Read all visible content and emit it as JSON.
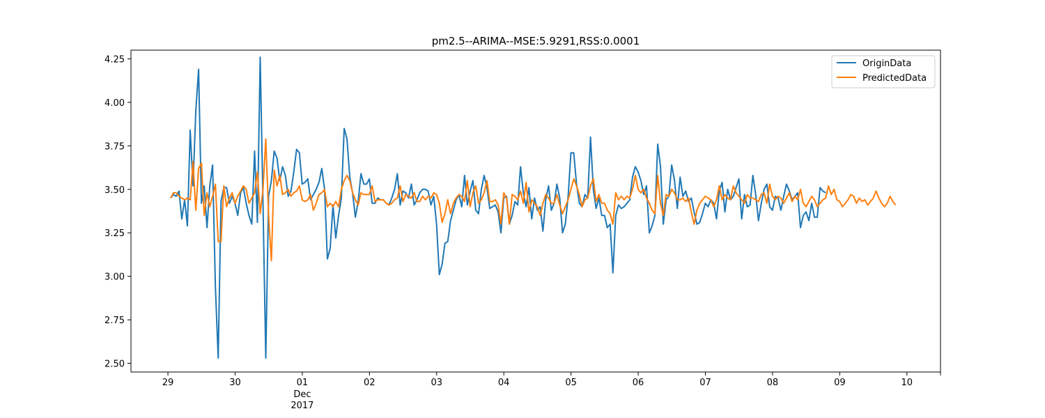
{
  "chart_data": {
    "type": "line",
    "title": "pm2.5--ARIMA--MSE:5.9291,RSS:0.0001",
    "xlabel": "",
    "ylabel": "",
    "x_ticks": [
      "29",
      "30",
      "01",
      "02",
      "03",
      "04",
      "05",
      "06",
      "07",
      "08",
      "09",
      "10"
    ],
    "x_tick_sublabel": [
      "Dec",
      "2017"
    ],
    "y_ticks": [
      "2.50",
      "2.75",
      "3.00",
      "3.25",
      "3.50",
      "3.75",
      "4.00",
      "4.25"
    ],
    "xlim": [
      28.45,
      40.5
    ],
    "ylim": [
      2.45,
      4.3
    ],
    "grid": false,
    "legend_position": "top-right",
    "series": [
      {
        "name": "OriginData",
        "color": "#1f77b4",
        "x_start": 29.04,
        "x_step": 0.04167,
        "values": [
          3.45,
          3.47,
          3.46,
          3.49,
          3.33,
          3.44,
          3.29,
          3.84,
          3.52,
          3.95,
          4.19,
          3.42,
          3.52,
          3.28,
          3.52,
          3.64,
          2.94,
          2.53,
          3.43,
          3.51,
          3.51,
          3.42,
          3.46,
          3.42,
          3.35,
          3.48,
          3.51,
          3.42,
          3.35,
          3.3,
          3.72,
          3.31,
          4.26,
          3.42,
          2.53,
          3.46,
          3.55,
          3.72,
          3.68,
          3.55,
          3.63,
          3.58,
          3.46,
          3.49,
          3.6,
          3.73,
          3.71,
          3.53,
          3.54,
          3.56,
          3.44,
          3.47,
          3.5,
          3.54,
          3.62,
          3.5,
          3.1,
          3.16,
          3.41,
          3.22,
          3.35,
          3.45,
          3.85,
          3.79,
          3.57,
          3.48,
          3.34,
          3.43,
          3.59,
          3.53,
          3.53,
          3.56,
          3.42,
          3.42,
          3.45,
          3.44,
          3.44,
          3.42,
          3.41,
          3.45,
          3.5,
          3.59,
          3.41,
          3.49,
          3.48,
          3.45,
          3.53,
          3.41,
          3.44,
          3.48,
          3.5,
          3.5,
          3.49,
          3.41,
          3.46,
          3.3,
          3.01,
          3.07,
          3.19,
          3.2,
          3.32,
          3.38,
          3.44,
          3.47,
          3.4,
          3.58,
          3.41,
          3.49,
          3.55,
          3.38,
          3.36,
          3.5,
          3.58,
          3.51,
          3.39,
          3.4,
          3.41,
          3.37,
          3.25,
          3.45,
          3.46,
          3.3,
          3.35,
          3.43,
          3.41,
          3.63,
          3.48,
          3.4,
          3.51,
          3.33,
          3.45,
          3.38,
          3.4,
          3.26,
          3.44,
          3.52,
          3.38,
          3.42,
          3.53,
          3.45,
          3.25,
          3.3,
          3.46,
          3.71,
          3.71,
          3.53,
          3.42,
          3.4,
          3.47,
          3.45,
          3.8,
          3.5,
          3.39,
          3.45,
          3.35,
          3.35,
          3.28,
          3.3,
          3.02,
          3.35,
          3.41,
          3.39,
          3.4,
          3.42,
          3.44,
          3.57,
          3.63,
          3.6,
          3.55,
          3.47,
          3.52,
          3.25,
          3.29,
          3.35,
          3.76,
          3.63,
          3.3,
          3.44,
          3.46,
          3.64,
          3.55,
          3.39,
          3.57,
          3.46,
          3.49,
          3.43,
          3.45,
          3.37,
          3.3,
          3.31,
          3.36,
          3.42,
          3.4,
          3.44,
          3.42,
          3.33,
          3.49,
          3.54,
          3.37,
          3.5,
          3.44,
          3.46,
          3.51,
          3.56,
          3.33,
          3.47,
          3.4,
          3.41,
          3.58,
          3.47,
          3.32,
          3.42,
          3.5,
          3.53,
          3.4,
          3.38,
          3.46,
          3.45,
          3.38,
          3.46,
          3.53,
          3.49,
          3.44,
          3.46,
          3.48,
          3.28,
          3.35,
          3.37,
          3.32,
          3.42,
          3.34,
          3.34,
          3.51,
          3.49,
          3.48
        ]
      },
      {
        "name": "PredictedData",
        "color": "#ff7f0e",
        "x_start": 29.04,
        "x_step": 0.04167,
        "values": [
          3.45,
          3.48,
          3.48,
          3.46,
          3.45,
          3.44,
          3.45,
          3.44,
          3.66,
          3.38,
          3.62,
          3.65,
          3.35,
          3.48,
          3.4,
          3.46,
          3.53,
          3.2,
          3.2,
          3.52,
          3.4,
          3.45,
          3.48,
          3.42,
          3.46,
          3.49,
          3.52,
          3.5,
          3.42,
          3.45,
          3.48,
          3.6,
          3.36,
          3.5,
          3.79,
          3.35,
          3.09,
          3.61,
          3.52,
          3.58,
          3.47,
          3.48,
          3.5,
          3.46,
          3.48,
          3.49,
          3.52,
          3.44,
          3.43,
          3.44,
          3.47,
          3.38,
          3.42,
          3.47,
          3.48,
          3.5,
          3.4,
          3.42,
          3.4,
          3.43,
          3.4,
          3.5,
          3.55,
          3.58,
          3.55,
          3.48,
          3.44,
          3.41,
          3.48,
          3.47,
          3.47,
          3.47,
          3.52,
          3.43,
          3.44,
          3.44,
          3.44,
          3.42,
          3.41,
          3.42,
          3.44,
          3.45,
          3.52,
          3.43,
          3.47,
          3.46,
          3.45,
          3.48,
          3.43,
          3.43,
          3.46,
          3.44,
          3.46,
          3.45,
          3.48,
          3.47,
          3.42,
          3.31,
          3.36,
          3.44,
          3.36,
          3.42,
          3.45,
          3.47,
          3.46,
          3.43,
          3.55,
          3.4,
          3.48,
          3.52,
          3.42,
          3.44,
          3.48,
          3.55,
          3.43,
          3.43,
          3.44,
          3.41,
          3.3,
          3.48,
          3.45,
          3.3,
          3.47,
          3.46,
          3.44,
          3.49,
          3.42,
          3.54,
          3.37,
          3.44,
          3.42,
          3.4,
          3.35,
          3.42,
          3.47,
          3.45,
          3.42,
          3.42,
          3.47,
          3.41,
          3.36,
          3.4,
          3.44,
          3.5,
          3.56,
          3.52,
          3.47,
          3.4,
          3.44,
          3.45,
          3.52,
          3.56,
          3.43,
          3.47,
          3.42,
          3.42,
          3.38,
          3.36,
          3.3,
          3.48,
          3.44,
          3.46,
          3.44,
          3.46,
          3.45,
          3.5,
          3.58,
          3.5,
          3.48,
          3.5,
          3.45,
          3.42,
          3.38,
          3.36,
          3.58,
          3.42,
          3.35,
          3.47,
          3.46,
          3.5,
          3.48,
          3.44,
          3.44,
          3.45,
          3.43,
          3.45,
          3.37,
          3.3,
          3.38,
          3.42,
          3.44,
          3.46,
          3.45,
          3.44,
          3.4,
          3.44,
          3.52,
          3.44,
          3.47,
          3.45,
          3.44,
          3.52,
          3.48,
          3.46,
          3.44,
          3.42,
          3.47,
          3.45,
          3.45,
          3.44,
          3.43,
          3.47,
          3.48,
          3.42,
          3.53,
          3.46,
          3.44,
          3.46,
          3.45,
          3.42,
          3.45,
          3.48,
          3.43,
          3.46,
          3.44,
          3.5,
          3.42,
          3.4,
          3.43,
          3.46,
          3.44,
          3.4,
          3.42,
          3.44,
          3.45,
          3.52,
          3.47,
          3.5,
          3.44,
          3.43,
          3.4,
          3.42,
          3.44,
          3.47,
          3.46,
          3.42,
          3.45,
          3.43,
          3.44,
          3.41,
          3.43,
          3.45,
          3.49,
          3.45,
          3.42,
          3.4,
          3.42,
          3.46,
          3.43,
          3.41
        ]
      }
    ]
  }
}
